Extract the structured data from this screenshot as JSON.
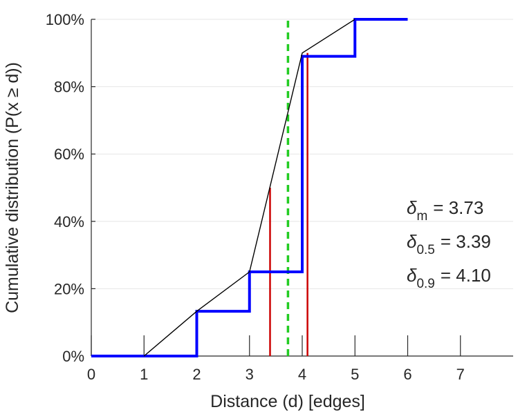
{
  "chart_data": {
    "type": "line",
    "xlabel": "Distance (d) [edges]",
    "ylabel": "Cumulative distribution (P(x ≥ d))",
    "xlim": [
      0,
      8
    ],
    "ylim": [
      0,
      100
    ],
    "xticks": [
      0,
      1,
      2,
      3,
      4,
      5,
      6,
      7
    ],
    "xtick_labels": [
      "0",
      "1",
      "2",
      "3",
      "4",
      "5",
      "6",
      "7"
    ],
    "yticks": [
      0,
      20,
      40,
      60,
      80,
      100
    ],
    "ytick_labels": [
      "0%",
      "20%",
      "40%",
      "60%",
      "80%",
      "100%"
    ],
    "grid": "horizontal",
    "series": [
      {
        "kind": "step",
        "color": "#0000ff",
        "x": [
          0,
          2,
          2,
          3,
          3,
          4,
          4,
          5,
          5,
          6
        ],
        "y": [
          0,
          0,
          13.3,
          13.3,
          25,
          25,
          89,
          89,
          100,
          100
        ]
      },
      {
        "kind": "line",
        "color": "#000000",
        "x": [
          1,
          2,
          3,
          4,
          5
        ],
        "y": [
          0,
          13.3,
          25,
          90,
          100
        ]
      }
    ],
    "markers": [
      {
        "kind": "dashed-vertical",
        "color": "#22cc22",
        "x": 3.73,
        "y_from": 0,
        "y_to": 100
      },
      {
        "kind": "vertical",
        "color": "#cc0000",
        "x": 3.39,
        "y_from": 0,
        "y_to": 50
      },
      {
        "kind": "vertical",
        "color": "#cc0000",
        "x": 4.1,
        "y_from": 0,
        "y_to": 90
      }
    ],
    "annotations": [
      {
        "symbol": "δ",
        "sub": "m",
        "text": "= 3.73"
      },
      {
        "symbol": "δ",
        "sub": "0.5",
        "text": "= 3.39"
      },
      {
        "symbol": "δ",
        "sub": "0.9",
        "text": "= 4.10"
      }
    ]
  }
}
